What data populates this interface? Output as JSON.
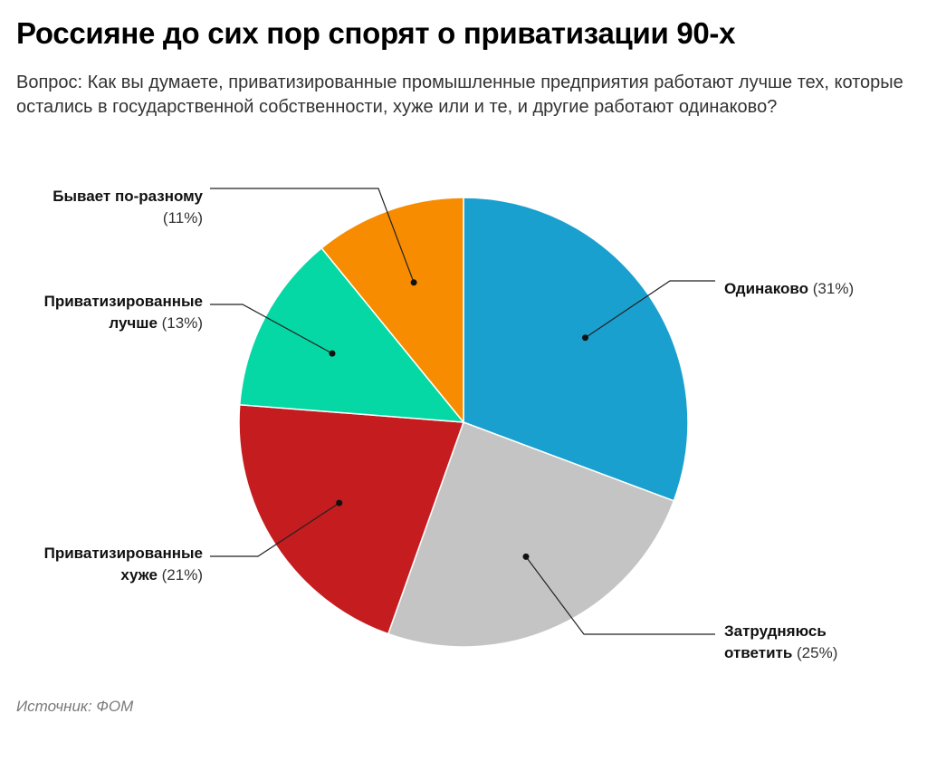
{
  "title": "Россияне до сих пор спорят о приватизации 90-х",
  "subtitle": "Вопрос: Как вы думаете, приватизированные промышленные предприятия работают лучше тех, которые остались в государственной собственности, хуже или и те, и другие работают одинаково?",
  "source": "Источник: ФОМ",
  "chart_data": {
    "type": "pie",
    "unit": "%",
    "slices": [
      {
        "label_lines": [
          "Одинаково"
        ],
        "label": "Одинаково",
        "pct_text": "(31%)",
        "value": 31,
        "color": "#1aa0cf"
      },
      {
        "label_lines": [
          "Затрудняюсь",
          "ответить"
        ],
        "label": "Затрудняюсь ответить",
        "pct_text": "(25%)",
        "value": 25,
        "color": "#c4c4c4"
      },
      {
        "label_lines": [
          "Приватизированные",
          "хуже"
        ],
        "label": "Приватизированные хуже",
        "pct_text": "(21%)",
        "value": 21,
        "color": "#c51c1f"
      },
      {
        "label_lines": [
          "Приватизированные",
          "лучше"
        ],
        "label": "Приватизированные лучше",
        "pct_text": "(13%)",
        "value": 13,
        "color": "#06d8a5"
      },
      {
        "label_lines": [
          "Бывает по-разному"
        ],
        "label": "Бывает по-разному",
        "pct_text": "(11%)",
        "value": 11,
        "color": "#f78c00"
      }
    ]
  }
}
